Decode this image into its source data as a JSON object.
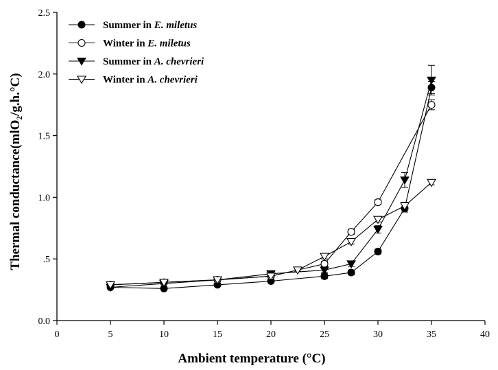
{
  "chart_data": {
    "type": "line",
    "title": "",
    "xlabel": "Ambient temperature (°C)",
    "ylabel": "Thermal conductance(mlO₂/g.h.°C)",
    "xlim": [
      0,
      40
    ],
    "ylim": [
      0,
      2.5
    ],
    "xticks": [
      "0",
      "5",
      "10",
      "15",
      "20",
      "25",
      "30",
      "35",
      "40"
    ],
    "xtick_values": [
      0,
      5,
      10,
      15,
      20,
      25,
      30,
      35,
      40
    ],
    "yticks": [
      "0.0",
      ".5",
      "1.0",
      "1.5",
      "2.0",
      "2.5"
    ],
    "ytick_values": [
      0,
      0.5,
      1.0,
      1.5,
      2.0,
      2.5
    ],
    "grid": false,
    "legend_position": "top-left",
    "series": [
      {
        "name": "Summer in E. miletus",
        "legend_prefix": "Summer in ",
        "legend_species": "E. miletus",
        "marker": "filled-circle",
        "x": [
          5,
          10,
          15,
          20,
          25,
          27.5,
          30,
          32.5,
          35
        ],
        "y": [
          0.27,
          0.26,
          0.29,
          0.32,
          0.36,
          0.39,
          0.56,
          0.91,
          1.89
        ],
        "err": [
          0.01,
          0.01,
          0.01,
          0.01,
          0.02,
          0.02,
          0.02,
          0.03,
          0.05
        ]
      },
      {
        "name": "Winter in E. miletus",
        "legend_prefix": "Winter in ",
        "legend_species": "E. miletus",
        "marker": "open-circle",
        "x": [
          5,
          10,
          15,
          20,
          25,
          27.5,
          30,
          35
        ],
        "y": [
          0.29,
          0.31,
          0.33,
          0.36,
          0.46,
          0.72,
          0.96,
          1.75
        ],
        "err": [
          0.01,
          0.01,
          0.01,
          0.01,
          0.02,
          0.02,
          0.02,
          0.04
        ]
      },
      {
        "name": "Summer in A. chevrieri",
        "legend_prefix": "Summer in ",
        "legend_species": "A. chevrieri",
        "marker": "filled-triangle-down",
        "x": [
          5,
          10,
          15,
          20,
          25,
          27.5,
          30,
          32.5,
          35
        ],
        "y": [
          0.27,
          0.3,
          0.33,
          0.38,
          0.41,
          0.46,
          0.74,
          1.14,
          1.95
        ],
        "err": [
          0.01,
          0.01,
          0.01,
          0.01,
          0.02,
          0.02,
          0.03,
          0.06,
          0.12
        ]
      },
      {
        "name": "Winter in A. chevrieri",
        "legend_prefix": "Winter in ",
        "legend_species": "A. chevrieri",
        "marker": "open-triangle-down",
        "x": [
          5,
          10,
          15,
          20,
          22.5,
          25,
          27.5,
          30,
          32.5,
          35
        ],
        "y": [
          0.29,
          0.31,
          0.33,
          0.36,
          0.41,
          0.52,
          0.64,
          0.82,
          0.93,
          1.12
        ],
        "err": [
          0.01,
          0.01,
          0.01,
          0.01,
          0.01,
          0.02,
          0.02,
          0.02,
          0.03,
          0.02
        ]
      }
    ]
  }
}
